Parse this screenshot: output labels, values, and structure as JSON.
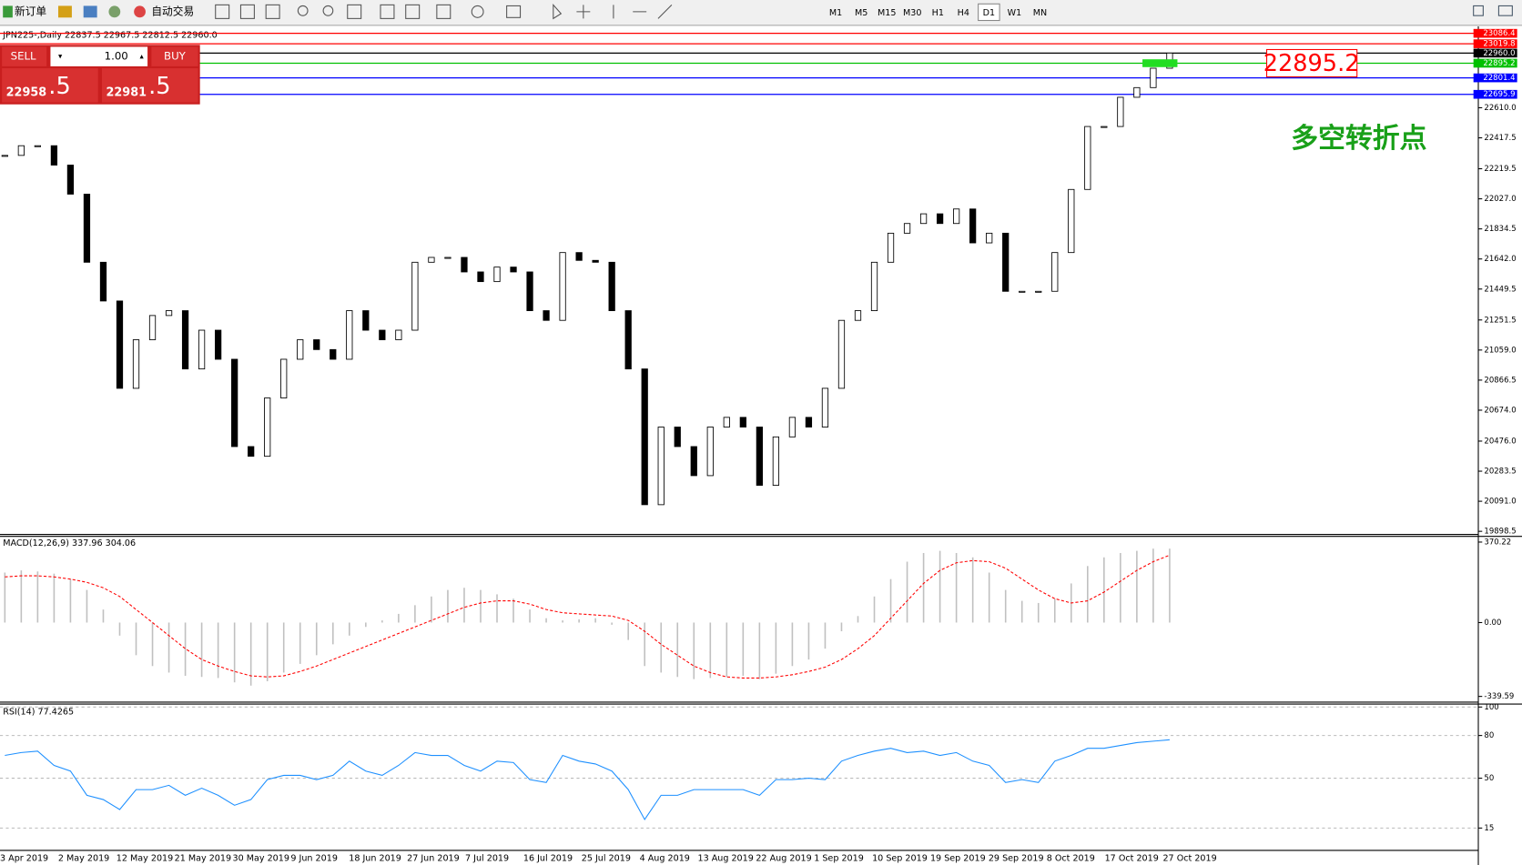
{
  "toolbar": {
    "new_order": "新订单",
    "auto_trading": "自动交易",
    "timeframes": [
      "M1",
      "M5",
      "M15",
      "M30",
      "H1",
      "H4",
      "D1",
      "W1",
      "MN"
    ]
  },
  "trade_panel": {
    "sell": "SELL",
    "lots": "1.00",
    "buy": "BUY",
    "bid_big": "22958",
    "bid_small": ".5",
    "ask_big": "22981",
    "ask_small": ".5"
  },
  "annotation": "多空转折点",
  "chart_data": [
    {
      "type": "candlestick",
      "title": "JPN225-,Daily  22837.5 22967.5 22812.5 22960.0",
      "x_labels": [
        "3 Apr 2019",
        "2 May 2019",
        "12 May 2019",
        "21 May 2019",
        "30 May 2019",
        "9 Jun 2019",
        "18 Jun 2019",
        "27 Jun 2019",
        "7 Jul 2019",
        "16 Jul 2019",
        "25 Jul 2019",
        "4 Aug 2019",
        "13 Aug 2019",
        "22 Aug 2019",
        "1 Sep 2019",
        "10 Sep 2019",
        "19 Sep 2019",
        "29 Sep 2019",
        "8 Oct 2019",
        "17 Oct 2019",
        "27 Oct 2019"
      ],
      "closes": [
        22305,
        22367,
        22367,
        22243,
        22057,
        21621,
        21373,
        20814,
        21125,
        21280,
        21311,
        20938,
        21186,
        21000,
        20441,
        20379,
        20752,
        21000,
        21125,
        21062,
        21000,
        21311,
        21186,
        21125,
        21186,
        21621,
        21652,
        21652,
        21559,
        21497,
        21590,
        21559,
        21311,
        21249,
        21683,
        21633,
        21621,
        21311,
        20938,
        20069,
        20566,
        20441,
        20255,
        20566,
        20628,
        20566,
        20193,
        20503,
        20628,
        20566,
        20814,
        21249,
        21311,
        21621,
        21807,
        21869,
        21931,
        21869,
        21962,
        21745,
        21807,
        21435,
        21435,
        21435,
        21683,
        22087,
        22490,
        22490,
        22677,
        22739,
        22863,
        22960
      ],
      "ylim": [
        19885,
        23125
      ],
      "yticks": [
        {
          "value": 22610,
          "label": "22610.0"
        },
        22417.5,
        22219.5,
        {
          "value": 22027,
          "label": "22027.0"
        },
        21834.5,
        {
          "value": 21642,
          "label": "21642.0"
        },
        21449.5,
        21251.5,
        {
          "value": 21059,
          "label": "21059.0"
        },
        20866.5,
        {
          "value": 20674,
          "label": "20674.0"
        },
        {
          "value": 20476,
          "label": "20476.0"
        },
        20283.5,
        {
          "value": 20091,
          "label": "20091.0"
        },
        19898.5
      ],
      "levels": [
        {
          "value": 23086.4,
          "color": "#ff0000"
        },
        {
          "value": 23019.8,
          "color": "#ff0000"
        },
        {
          "value": {
            "value": 22960,
            "label": "22960.0"
          },
          "color": "#000000"
        },
        {
          "value": 22895.2,
          "color": "#00c000"
        },
        {
          "value": 22801.4,
          "color": "#0000ff"
        },
        {
          "value": 22695.9,
          "color": "#0000ff"
        }
      ],
      "marker": 22895.2
    },
    {
      "type": "histogram",
      "title": "MACD(12,26,9) 337.96 304.06",
      "main": [
        230,
        240,
        235,
        225,
        200,
        150,
        60,
        -60,
        -150,
        -200,
        -230,
        -245,
        -250,
        -255,
        -275,
        -290,
        -270,
        -230,
        -190,
        -150,
        -100,
        -60,
        -20,
        10,
        40,
        80,
        120,
        150,
        160,
        150,
        130,
        110,
        60,
        20,
        10,
        15,
        20,
        -10,
        -80,
        -200,
        -230,
        -250,
        -260,
        -255,
        -250,
        -245,
        -260,
        -235,
        -200,
        -170,
        -120,
        -40,
        30,
        120,
        200,
        280,
        320,
        330,
        320,
        300,
        230,
        150,
        100,
        90,
        110,
        180,
        260,
        300,
        320,
        330,
        340,
        340
      ],
      "signal": [
        210,
        215,
        215,
        210,
        200,
        185,
        160,
        120,
        60,
        0,
        -60,
        -120,
        -170,
        -200,
        -225,
        -245,
        -250,
        -245,
        -225,
        -200,
        -170,
        -140,
        -110,
        -80,
        -50,
        -20,
        10,
        40,
        70,
        90,
        100,
        100,
        85,
        60,
        45,
        40,
        35,
        30,
        10,
        -40,
        -100,
        -150,
        -200,
        -230,
        -250,
        -255,
        -255,
        -250,
        -240,
        -225,
        -205,
        -170,
        -120,
        -60,
        20,
        100,
        180,
        240,
        275,
        285,
        280,
        250,
        200,
        150,
        110,
        90,
        100,
        140,
        190,
        240,
        280,
        310
      ],
      "main_color": "#c0c0c0",
      "signal_color": "#ff0000",
      "ylim": [
        -357,
        401
      ],
      "yticks": [
        370.22,
        {
          "value": 0,
          "label": "0.00"
        },
        -339.59
      ]
    },
    {
      "type": "line",
      "title": "RSI(14) 77.4265",
      "values": [
        66,
        68,
        69,
        59,
        55,
        38,
        35,
        28,
        42,
        42,
        45,
        38,
        43,
        38,
        31,
        35,
        49,
        52,
        52,
        49,
        52,
        62,
        55,
        52,
        59,
        68,
        66,
        66,
        59,
        55,
        62,
        61,
        49,
        47,
        66,
        62,
        60,
        55,
        42,
        21,
        38,
        38,
        42,
        42,
        42,
        42,
        38,
        49,
        49,
        50,
        49,
        62,
        66,
        69,
        71,
        68,
        69,
        66,
        68,
        62,
        59,
        47,
        49,
        47,
        62,
        66,
        71,
        71,
        73,
        75,
        76,
        77
      ],
      "color": "#1e90ff",
      "ylim": [
        0,
        100
      ],
      "yticks": [
        100,
        80,
        50,
        15
      ]
    }
  ]
}
